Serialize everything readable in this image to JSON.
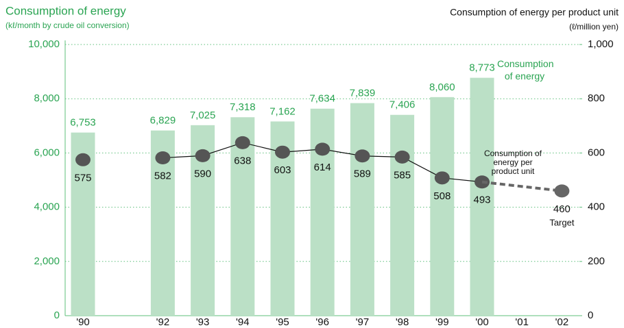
{
  "chart_data": {
    "type": "bar_line",
    "title": "Consumption of energy",
    "subtitle": "(kℓ/month by crude oil conversion)",
    "y2_title": "Consumption of energy per product unit",
    "y2_subtitle": "(ℓ/million yen)",
    "categories": [
      "'90",
      null,
      "'92",
      "'93",
      "'94",
      "'95",
      "'96",
      "'97",
      "'98",
      "'99",
      "'00",
      "'01",
      "'02"
    ],
    "ylim": [
      0,
      10000
    ],
    "yticks": [
      0,
      {
        "value": 2000,
        "label": "2,000"
      },
      {
        "value": 4000,
        "label": "4,000"
      },
      {
        "value": 6000,
        "label": "6,000"
      },
      {
        "value": 8000,
        "label": "8,000"
      },
      {
        "value": 10000,
        "label": "10,000"
      }
    ],
    "y2lim": [
      0,
      1000
    ],
    "y2ticks": [
      0,
      200,
      400,
      600,
      800,
      {
        "value": 1000,
        "label": "1,000"
      }
    ],
    "grid": true,
    "series": [
      {
        "name": "Consumption of energy",
        "kind": "bar",
        "color": "#bbe0c6",
        "values": [
          6753,
          null,
          6829,
          7025,
          7318,
          7162,
          7634,
          7839,
          7406,
          8060,
          8773,
          null,
          null
        ],
        "value_labels": [
          "6,753",
          null,
          "6,829",
          "7,025",
          "7,318",
          "7,162",
          "7,634",
          "7,839",
          "7,406",
          "8,060",
          "8,773",
          null,
          null
        ]
      },
      {
        "name": "Consumption of energy per product unit",
        "kind": "line",
        "axis": "y2",
        "color": "#555555",
        "values": [
          575,
          null,
          582,
          590,
          638,
          603,
          614,
          589,
          585,
          508,
          493,
          null,
          null
        ]
      },
      {
        "name": "Target",
        "kind": "dashed",
        "axis": "y2",
        "color": "#666666",
        "values": [
          null,
          null,
          null,
          null,
          null,
          null,
          null,
          null,
          null,
          null,
          null,
          null,
          460
        ]
      }
    ]
  }
}
